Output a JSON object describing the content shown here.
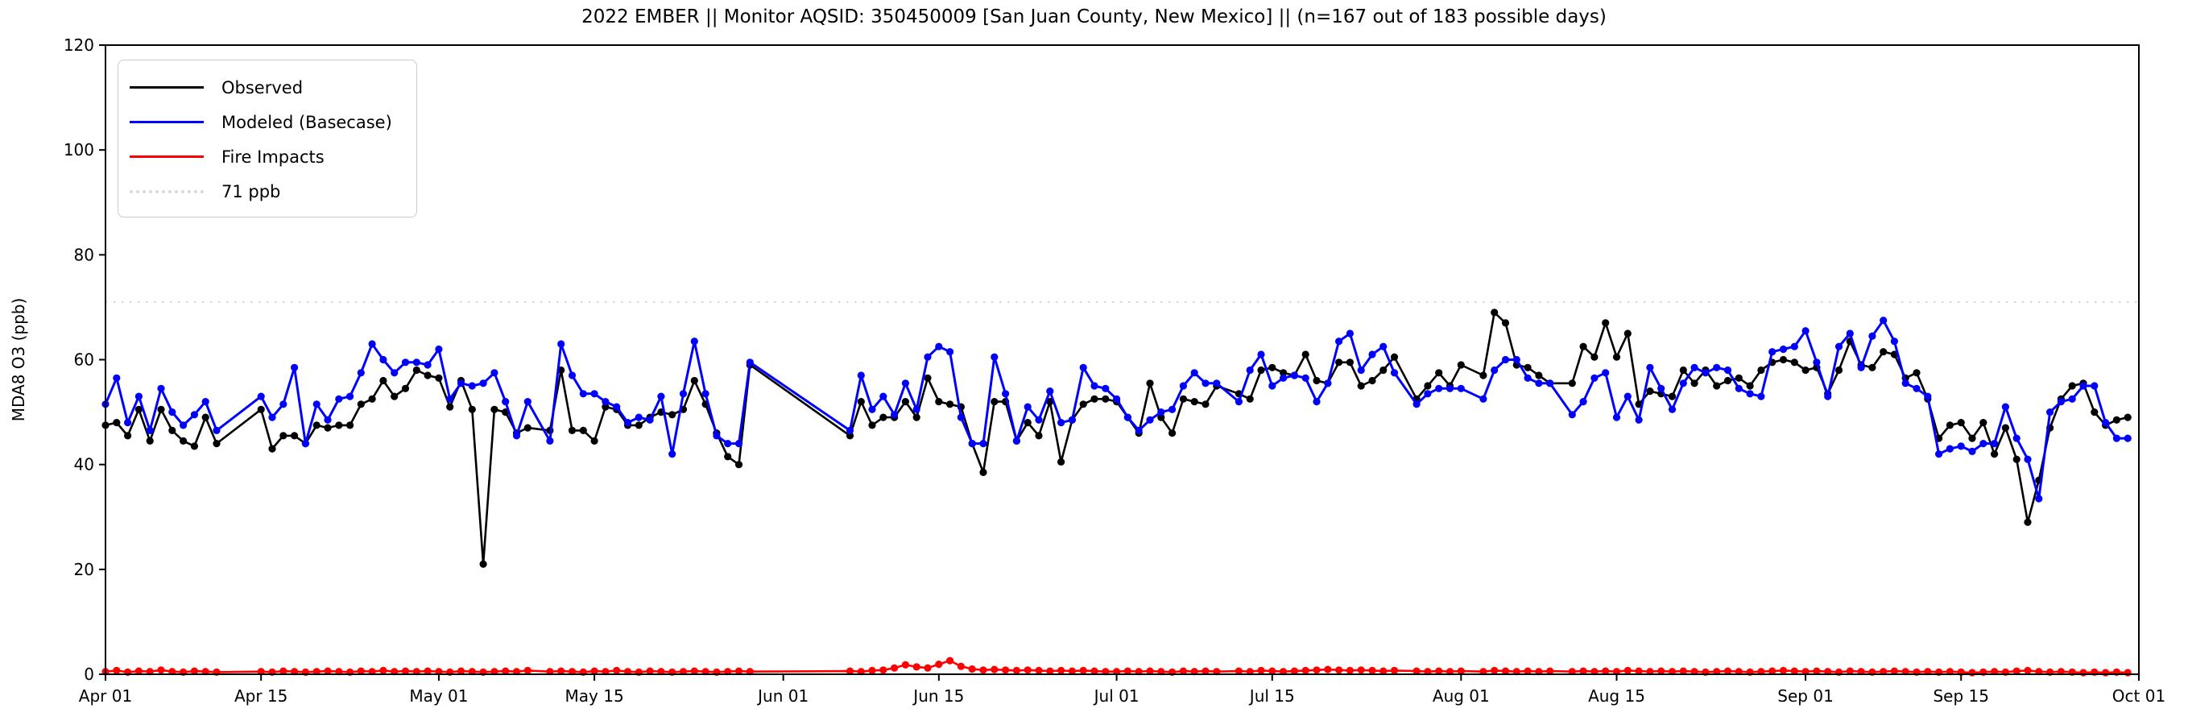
{
  "title": "2022 EMBER || Monitor AQSID: 350450009 [San Juan County, New Mexico] || (n=167 out of 183 possible days)",
  "legend": {
    "items": [
      {
        "label": "Observed",
        "color": "#000000",
        "style": "solid"
      },
      {
        "label": "Modeled (Basecase)",
        "color": "#0000ff",
        "style": "solid"
      },
      {
        "label": "Fire Impacts",
        "color": "#ff0000",
        "style": "solid"
      },
      {
        "label": "71 ppb",
        "color": "#d9d9d9",
        "style": "dotted"
      }
    ]
  },
  "axes": {
    "ylabel": "MDA8 O3 (ppb)",
    "ylim": [
      0,
      120
    ],
    "yticks": [
      0,
      20,
      40,
      60,
      80,
      100,
      120
    ],
    "xtick_labels": [
      "Apr 01",
      "Apr 15",
      "May 01",
      "May 15",
      "Jun 01",
      "Jun 15",
      "Jul 01",
      "Jul 15",
      "Aug 01",
      "Aug 15",
      "Sep 01",
      "Sep 15",
      "Oct 01"
    ],
    "xtick_days": [
      1,
      15,
      31,
      45,
      62,
      76,
      92,
      106,
      123,
      137,
      154,
      168,
      184
    ]
  },
  "reference_line": {
    "value": 71,
    "label": "71 ppb",
    "color": "#d9d9d9"
  },
  "chart_data": {
    "type": "line",
    "title": "2022 EMBER || Monitor AQSID: 350450009 [San Juan County, New Mexico] || (n=167 out of 183 possible days)",
    "xlabel": "",
    "ylabel": "MDA8 O3 (ppb)",
    "ylim": [
      0,
      120
    ],
    "start_date": "2022-04-01",
    "end_date": "2022-09-30",
    "n_days": 183,
    "n_observed_days": 167,
    "grid": false,
    "legend_position": "upper left",
    "series": [
      {
        "name": "Observed",
        "color": "#000000",
        "values": [
          47.5,
          48,
          45.5,
          50.5,
          44.5,
          50.5,
          46.5,
          44.5,
          43.5,
          49,
          44,
          null,
          null,
          null,
          50.5,
          43,
          45.5,
          45.5,
          44,
          47.5,
          47,
          47.5,
          47.5,
          51.5,
          52.5,
          56,
          53,
          54.5,
          58,
          57,
          56.5,
          51,
          56,
          50.5,
          21,
          50.5,
          50,
          46,
          47,
          null,
          46.5,
          58,
          46.5,
          46.5,
          44.5,
          51,
          50.5,
          47.5,
          47.5,
          49,
          50,
          49.5,
          50.5,
          56,
          51.5,
          46,
          41.5,
          40,
          59,
          null,
          null,
          null,
          null,
          null,
          null,
          null,
          null,
          45.5,
          52,
          47.5,
          49,
          49,
          52,
          49,
          56.5,
          52,
          51.5,
          51,
          44,
          38.5,
          52,
          52,
          44.5,
          48,
          45.5,
          52,
          40.5,
          48.5,
          51.5,
          52.5,
          52.5,
          52,
          49,
          46,
          55.5,
          49,
          46,
          52.5,
          52,
          51.5,
          55,
          null,
          53.5,
          52.5,
          58,
          58.5,
          57.5,
          57,
          61,
          56,
          55.5,
          59.5,
          59.5,
          55,
          56,
          58,
          60.5,
          null,
          52.5,
          55,
          57.5,
          55,
          59,
          null,
          57,
          69,
          67,
          59,
          58.5,
          57,
          55.5,
          null,
          55.5,
          62.5,
          60.5,
          67,
          60.5,
          65,
          51.5,
          54,
          53.5,
          53,
          58,
          55.5,
          58,
          55,
          56,
          56.5,
          55,
          58,
          59.5,
          60,
          59.5,
          58,
          58.5,
          53.5,
          58,
          63.5,
          59,
          58.5,
          61.5,
          61,
          56.5,
          57.5,
          52.5,
          45,
          47.5,
          48,
          45,
          48,
          42,
          47,
          41,
          29,
          37,
          47,
          52.5,
          55,
          55.5,
          50,
          47.5,
          48.5,
          49
        ]
      },
      {
        "name": "Modeled (Basecase)",
        "color": "#0000ff",
        "values": [
          51.5,
          56.5,
          48,
          53,
          46.5,
          54.5,
          50,
          47.5,
          49.5,
          52,
          46.5,
          null,
          null,
          null,
          53,
          49,
          51.5,
          58.5,
          44,
          51.5,
          48.5,
          52.5,
          53,
          57.5,
          63,
          60,
          57.5,
          59.5,
          59.5,
          59,
          62,
          52.5,
          55.5,
          55,
          55.5,
          57.5,
          52,
          45.5,
          52,
          null,
          44.5,
          63,
          57,
          53.5,
          53.5,
          52,
          51,
          48,
          49,
          48.5,
          53,
          42,
          53.5,
          63.5,
          53.5,
          45.5,
          44,
          44,
          59.5,
          null,
          null,
          null,
          null,
          null,
          null,
          null,
          null,
          46.5,
          57,
          50.5,
          53,
          49.5,
          55.5,
          50.5,
          60.5,
          62.5,
          61.5,
          49,
          44,
          44,
          60.5,
          53.5,
          44.5,
          51,
          48.5,
          54,
          48,
          48.5,
          58.5,
          55,
          54.5,
          52.5,
          49,
          46.5,
          48.5,
          50,
          50.5,
          55,
          57.5,
          55.5,
          55.5,
          null,
          52,
          58,
          61,
          55,
          56.5,
          57,
          56.5,
          52,
          55.5,
          63.5,
          65,
          58,
          61,
          62.5,
          57.5,
          null,
          51.5,
          53.5,
          54.5,
          54.5,
          54.5,
          null,
          52.5,
          58,
          60,
          60,
          56.5,
          55.5,
          55.5,
          null,
          49.5,
          52,
          56.5,
          57.5,
          49,
          53,
          48.5,
          58.5,
          54.5,
          50.5,
          55.5,
          58.5,
          57.5,
          58.5,
          58,
          54.5,
          53.5,
          53,
          61.5,
          62,
          62.5,
          65.5,
          59.5,
          53,
          62.5,
          65,
          58.5,
          64.5,
          67.5,
          63.5,
          55.5,
          54.5,
          53,
          42,
          43,
          43.5,
          42.5,
          44,
          44,
          51,
          45,
          41,
          33.5,
          50,
          52,
          52.5,
          55,
          55,
          48,
          45,
          45
        ]
      },
      {
        "name": "Fire Impacts",
        "color": "#ff0000",
        "values": [
          0.5,
          0.7,
          0.4,
          0.6,
          0.5,
          0.8,
          0.5,
          0.4,
          0.6,
          0.5,
          0.4,
          null,
          null,
          null,
          0.5,
          0.4,
          0.6,
          0.5,
          0.4,
          0.5,
          0.6,
          0.5,
          0.4,
          0.6,
          0.5,
          0.7,
          0.5,
          0.6,
          0.5,
          0.6,
          0.5,
          0.4,
          0.6,
          0.5,
          0.4,
          0.5,
          0.6,
          0.5,
          0.7,
          null,
          0.5,
          0.6,
          0.5,
          0.4,
          0.6,
          0.5,
          0.7,
          0.5,
          0.4,
          0.6,
          0.5,
          0.4,
          0.5,
          0.6,
          0.5,
          0.4,
          0.5,
          0.6,
          0.5,
          null,
          null,
          null,
          null,
          null,
          null,
          null,
          null,
          0.6,
          0.5,
          0.7,
          0.8,
          1.2,
          1.8,
          1.4,
          1.2,
          1.9,
          2.6,
          1.5,
          1.0,
          0.8,
          0.9,
          0.8,
          0.7,
          0.8,
          0.7,
          0.6,
          0.7,
          0.6,
          0.7,
          0.6,
          0.5,
          0.5,
          0.6,
          0.5,
          0.6,
          0.5,
          0.4,
          0.6,
          0.5,
          0.6,
          0.5,
          null,
          0.6,
          0.5,
          0.7,
          0.6,
          0.5,
          0.6,
          0.7,
          0.8,
          0.9,
          0.8,
          0.7,
          0.8,
          0.7,
          0.6,
          0.7,
          null,
          0.6,
          0.5,
          0.6,
          0.5,
          0.6,
          null,
          0.5,
          0.7,
          0.6,
          0.5,
          0.6,
          0.5,
          0.6,
          null,
          0.5,
          0.6,
          0.5,
          0.6,
          0.5,
          0.7,
          0.6,
          0.5,
          0.6,
          0.5,
          0.6,
          0.5,
          0.4,
          0.5,
          0.6,
          0.5,
          0.4,
          0.5,
          0.6,
          0.7,
          0.6,
          0.5,
          0.6,
          0.5,
          0.4,
          0.6,
          0.5,
          0.4,
          0.5,
          0.6,
          0.5,
          0.4,
          0.5,
          0.4,
          0.5,
          0.4,
          0.3,
          0.4,
          0.5,
          0.4,
          0.6,
          0.7,
          0.5,
          0.4,
          0.5,
          0.4,
          0.3,
          0.4,
          0.3,
          0.4,
          0.3
        ]
      }
    ],
    "reference_line_ppb": 71
  }
}
